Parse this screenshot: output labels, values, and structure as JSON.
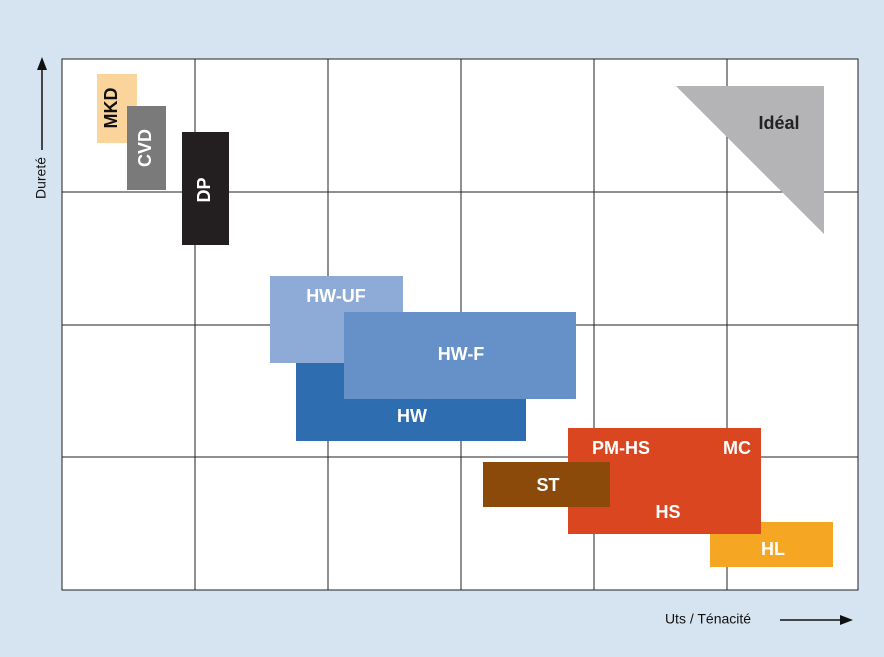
{
  "axes": {
    "y_label": "Dureté",
    "x_label": "Uts / Ténacité"
  },
  "ideal": "Idéal",
  "materials": [
    {
      "label": "MKD"
    },
    {
      "label": "CVD"
    },
    {
      "label": "DP"
    },
    {
      "label": "HW-UF"
    },
    {
      "label": "HW"
    },
    {
      "label": "HW-F"
    },
    {
      "label": "HL"
    },
    {
      "label": "PM-HS"
    },
    {
      "label": "MC"
    },
    {
      "label": "HS"
    },
    {
      "label": "ST"
    }
  ]
}
